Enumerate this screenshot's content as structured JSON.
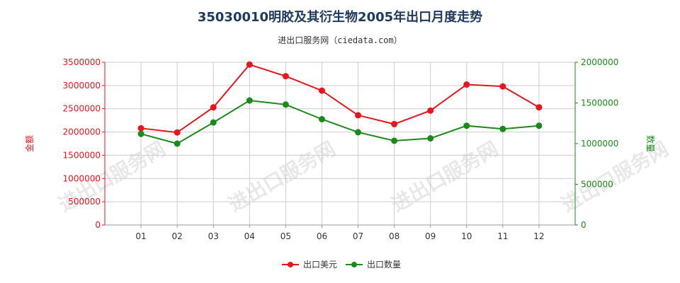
{
  "title": "35030010明胶及其衍生物2005年出口月度走势",
  "subtitle": "进出口服务网（ciedata.com）",
  "watermark": "进出口服务网",
  "colors": {
    "amount": "#e8141e",
    "quantity": "#1a8a1a",
    "grid": "#cccccc",
    "axis_line": "#999999"
  },
  "chart_data": {
    "type": "line",
    "categories": [
      "01",
      "02",
      "03",
      "04",
      "05",
      "06",
      "07",
      "08",
      "09",
      "10",
      "11",
      "12"
    ],
    "y_left": {
      "label": "金额",
      "min": 0,
      "max": 3500000,
      "ticks": [
        0,
        500000,
        1000000,
        1500000,
        2000000,
        2500000,
        3000000,
        3500000
      ]
    },
    "y_right": {
      "label": "数量",
      "min": 0,
      "max": 2000000,
      "ticks": [
        0,
        500000,
        1000000,
        1500000,
        2000000
      ]
    },
    "series": [
      {
        "name": "出口美元",
        "axis": "left",
        "color": "#e8141e",
        "values": [
          2080000,
          1990000,
          2530000,
          3450000,
          3200000,
          2890000,
          2360000,
          2170000,
          2460000,
          3020000,
          2980000,
          2530000
        ]
      },
      {
        "name": "出口数量",
        "axis": "right",
        "color": "#1a8a1a",
        "values": [
          1120000,
          1000000,
          1260000,
          1530000,
          1480000,
          1300000,
          1140000,
          1035000,
          1065000,
          1220000,
          1180000,
          1220000
        ]
      }
    ]
  }
}
